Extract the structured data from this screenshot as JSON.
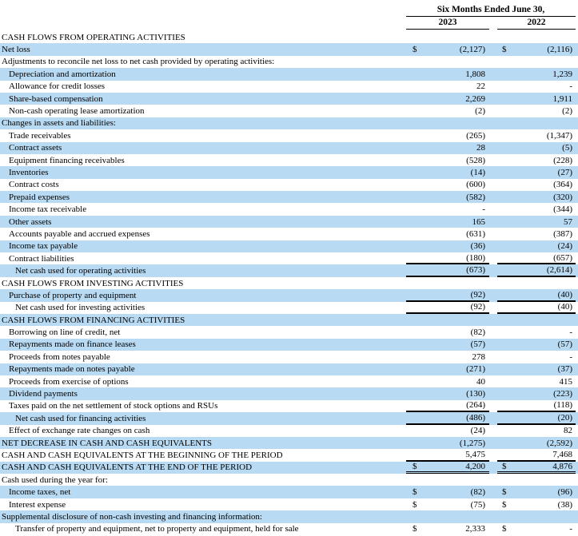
{
  "header": {
    "period_label": "Six Months Ended June 30,",
    "years": [
      "2023",
      "2022"
    ]
  },
  "currency_symbol": "$",
  "colors": {
    "row_highlight": "#b8daf3",
    "rule_color": "#000000",
    "text_color": "#000000"
  },
  "rows": [
    {
      "label": "CASH FLOWS FROM OPERATING ACTIVITIES",
      "indent": 0,
      "d": false,
      "v1": "",
      "v2": "",
      "ul": null
    },
    {
      "label": "Net loss",
      "indent": 0,
      "d": true,
      "v1": "(2,127)",
      "v2": "(2,116)",
      "ul": null
    },
    {
      "label": "Adjustments to reconcile net loss to net cash provided by operating activities:",
      "indent": 0,
      "d": false,
      "v1": "",
      "v2": "",
      "ul": null
    },
    {
      "label": "Depreciation and amortization",
      "indent": 1,
      "d": false,
      "v1": "1,808",
      "v2": "1,239",
      "ul": null
    },
    {
      "label": "Allowance for credit losses",
      "indent": 1,
      "d": false,
      "v1": "22",
      "v2": "-",
      "ul": null
    },
    {
      "label": "Share-based compensation",
      "indent": 1,
      "d": false,
      "v1": "2,269",
      "v2": "1,911",
      "ul": null
    },
    {
      "label": "Non-cash operating lease amortization",
      "indent": 1,
      "d": false,
      "v1": "(2)",
      "v2": "(2)",
      "ul": null
    },
    {
      "label": "Changes in assets and liabilities:",
      "indent": 0,
      "d": false,
      "v1": "",
      "v2": "",
      "ul": null
    },
    {
      "label": "Trade receivables",
      "indent": 1,
      "d": false,
      "v1": "(265)",
      "v2": "(1,347)",
      "ul": null
    },
    {
      "label": "Contract assets",
      "indent": 1,
      "d": false,
      "v1": "28",
      "v2": "(5)",
      "ul": null
    },
    {
      "label": "Equipment financing receivables",
      "indent": 1,
      "d": false,
      "v1": "(528)",
      "v2": "(228)",
      "ul": null
    },
    {
      "label": "Inventories",
      "indent": 1,
      "d": false,
      "v1": "(14)",
      "v2": "(27)",
      "ul": null
    },
    {
      "label": "Contract costs",
      "indent": 1,
      "d": false,
      "v1": "(600)",
      "v2": "(364)",
      "ul": null
    },
    {
      "label": "Prepaid expenses",
      "indent": 1,
      "d": false,
      "v1": "(582)",
      "v2": "(320)",
      "ul": null
    },
    {
      "label": "Income tax receivable",
      "indent": 1,
      "d": false,
      "v1": "-",
      "v2": "(344)",
      "ul": null
    },
    {
      "label": "Other assets",
      "indent": 1,
      "d": false,
      "v1": "165",
      "v2": "57",
      "ul": null
    },
    {
      "label": "Accounts payable and accrued expenses",
      "indent": 1,
      "d": false,
      "v1": "(631)",
      "v2": "(387)",
      "ul": null
    },
    {
      "label": "Income tax payable",
      "indent": 1,
      "d": false,
      "v1": "(36)",
      "v2": "(24)",
      "ul": null
    },
    {
      "label": "Contract liabilities",
      "indent": 1,
      "d": false,
      "v1": "(180)",
      "v2": "(657)",
      "ul": "single"
    },
    {
      "label": "Net cash used for operating activities",
      "indent": 2,
      "d": false,
      "v1": "(673)",
      "v2": "(2,614)",
      "ul": "single"
    },
    {
      "label": "CASH FLOWS FROM INVESTING ACTIVITIES",
      "indent": 0,
      "d": false,
      "v1": "",
      "v2": "",
      "ul": null
    },
    {
      "label": "Purchase of property and equipment",
      "indent": 1,
      "d": false,
      "v1": "(92)",
      "v2": "(40)",
      "ul": "single"
    },
    {
      "label": "Net cash used for investing activities",
      "indent": 2,
      "d": false,
      "v1": "(92)",
      "v2": "(40)",
      "ul": "single"
    },
    {
      "label": "CASH FLOWS FROM FINANCING ACTIVITIES",
      "indent": 0,
      "d": false,
      "v1": "",
      "v2": "",
      "ul": null
    },
    {
      "label": "Borrowing on line of credit, net",
      "indent": 1,
      "d": false,
      "v1": "(82)",
      "v2": "-",
      "ul": null
    },
    {
      "label": "Repayments made on finance leases",
      "indent": 1,
      "d": false,
      "v1": "(57)",
      "v2": "(57)",
      "ul": null
    },
    {
      "label": "Proceeds from notes payable",
      "indent": 1,
      "d": false,
      "v1": "278",
      "v2": "-",
      "ul": null
    },
    {
      "label": "Repayments made on notes payable",
      "indent": 1,
      "d": false,
      "v1": "(271)",
      "v2": "(37)",
      "ul": null
    },
    {
      "label": "Proceeds from exercise of options",
      "indent": 1,
      "d": false,
      "v1": "40",
      "v2": "415",
      "ul": null
    },
    {
      "label": "Dividend payments",
      "indent": 1,
      "d": false,
      "v1": "(130)",
      "v2": "(223)",
      "ul": null
    },
    {
      "label": "Taxes paid on the net settlement of stock options and RSUs",
      "indent": 1,
      "d": false,
      "v1": "(264)",
      "v2": "(118)",
      "ul": "single"
    },
    {
      "label": "Net cash used for financing activities",
      "indent": 2,
      "d": false,
      "v1": "(486)",
      "v2": "(20)",
      "ul": "single"
    },
    {
      "label": "Effect of exchange rate changes on cash",
      "indent": 1,
      "d": false,
      "v1": "(24)",
      "v2": "82",
      "ul": null
    },
    {
      "label": "NET DECREASE IN CASH AND CASH EQUIVALENTS",
      "indent": 0,
      "d": false,
      "v1": "(1,275)",
      "v2": "(2,592)",
      "ul": null
    },
    {
      "label": "CASH AND CASH EQUIVALENTS AT THE BEGINNING OF THE PERIOD",
      "indent": 0,
      "d": false,
      "v1": "5,475",
      "v2": "7,468",
      "ul": "single"
    },
    {
      "label": "CASH AND CASH EQUIVALENTS AT THE END OF THE PERIOD",
      "indent": 0,
      "d": true,
      "v1": "4,200",
      "v2": "4,876",
      "ul": "double"
    },
    {
      "label": "Cash used during the year for:",
      "indent": 0,
      "d": false,
      "v1": "",
      "v2": "",
      "ul": null
    },
    {
      "label": "Income taxes, net",
      "indent": 1,
      "d": true,
      "v1": "(82)",
      "v2": "(96)",
      "ul": null
    },
    {
      "label": "Interest expense",
      "indent": 1,
      "d": true,
      "v1": "(75)",
      "v2": "(38)",
      "ul": null
    },
    {
      "label": "Supplemental disclosure of non-cash investing and financing information:",
      "indent": 0,
      "d": false,
      "v1": "",
      "v2": "",
      "ul": null
    },
    {
      "label": "Transfer of property and equipment, net to property and equipment, held for sale",
      "indent": 2,
      "d": true,
      "v1": "2,333",
      "v2": "-",
      "ul": null
    }
  ]
}
